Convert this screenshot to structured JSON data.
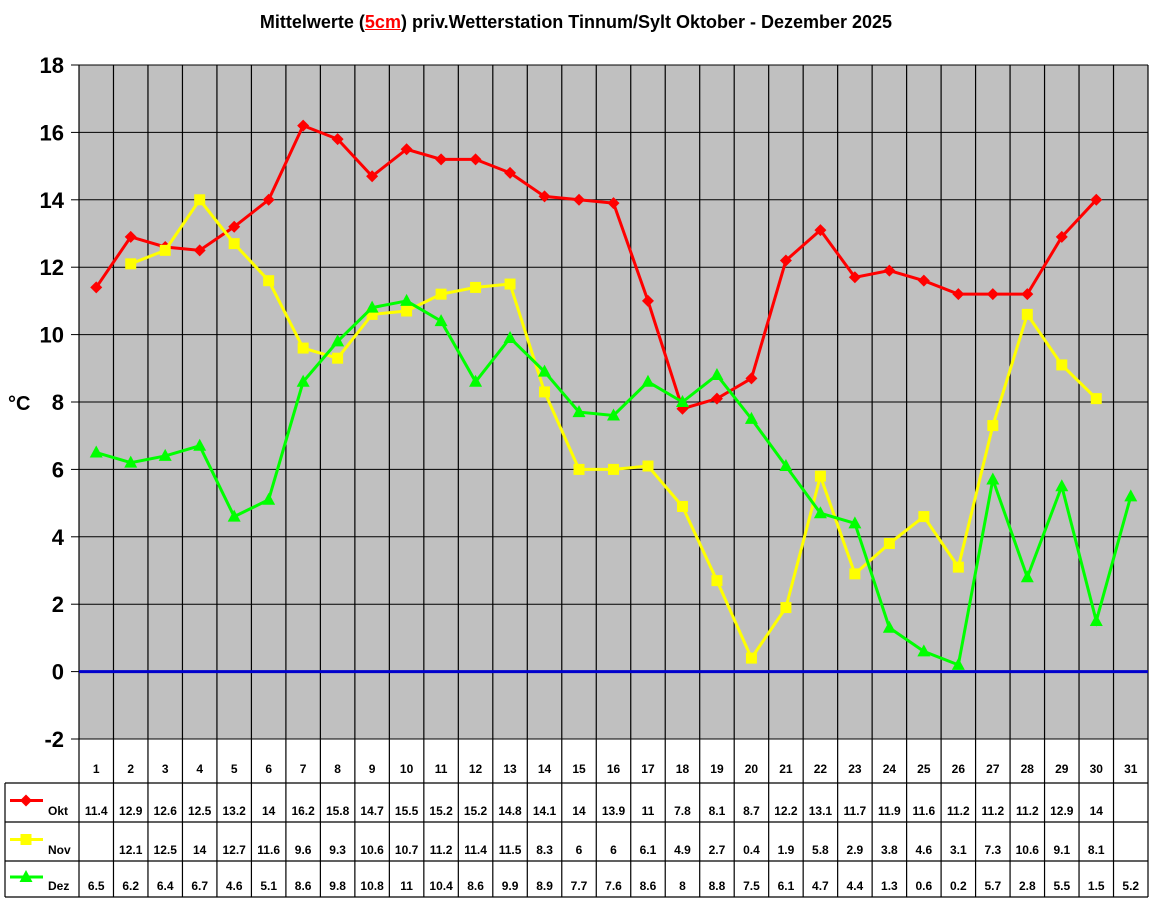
{
  "chart_data": {
    "type": "line",
    "title_pre": "Mittelwerte (",
    "title_highlight": "5cm",
    "title_post": ") priv.Wetterstation Tinnum/Sylt Oktober - Dezember 2025",
    "ylabel": "°C",
    "ylim": [
      -2,
      18
    ],
    "yticks": [
      18,
      16,
      14,
      12,
      10,
      8,
      6,
      4,
      2,
      0,
      -2
    ],
    "grid": true,
    "zero_line_color": "#0000cc",
    "plot_background": "#c0c0c0",
    "categories": [
      "1",
      "2",
      "3",
      "4",
      "5",
      "6",
      "7",
      "8",
      "9",
      "10",
      "11",
      "12",
      "13",
      "14",
      "15",
      "16",
      "17",
      "18",
      "19",
      "20",
      "21",
      "22",
      "23",
      "24",
      "25",
      "26",
      "27",
      "28",
      "29",
      "30",
      "31"
    ],
    "series": [
      {
        "name": "Okt",
        "color": "#ff0000",
        "marker": "diamond",
        "values": [
          11.4,
          12.9,
          12.6,
          12.5,
          13.2,
          14,
          16.2,
          15.8,
          14.7,
          15.5,
          15.2,
          15.2,
          14.8,
          14.1,
          14,
          13.9,
          11,
          7.8,
          8.1,
          8.7,
          12.2,
          13.1,
          11.7,
          11.9,
          11.6,
          11.2,
          11.2,
          11.2,
          12.9,
          14,
          null
        ]
      },
      {
        "name": "Nov",
        "color": "#ffff00",
        "marker": "square",
        "values": [
          null,
          12.1,
          12.5,
          14,
          12.7,
          11.6,
          9.6,
          9.3,
          10.6,
          10.7,
          11.2,
          11.4,
          11.5,
          8.3,
          6,
          6,
          6.1,
          4.9,
          2.7,
          0.4,
          1.9,
          5.8,
          2.9,
          3.8,
          4.6,
          3.1,
          7.3,
          10.6,
          9.1,
          8.1,
          null
        ]
      },
      {
        "name": "Dez",
        "color": "#00ff00",
        "marker": "triangle",
        "values": [
          6.5,
          6.2,
          6.4,
          6.7,
          4.6,
          5.1,
          8.6,
          9.8,
          10.8,
          11,
          10.4,
          8.6,
          9.9,
          8.9,
          7.7,
          7.6,
          8.6,
          8,
          8.8,
          7.5,
          6.1,
          4.7,
          4.4,
          1.3,
          0.6,
          0.2,
          5.7,
          2.8,
          5.5,
          1.5,
          5.2
        ]
      }
    ],
    "legend_placement": "data-table"
  }
}
